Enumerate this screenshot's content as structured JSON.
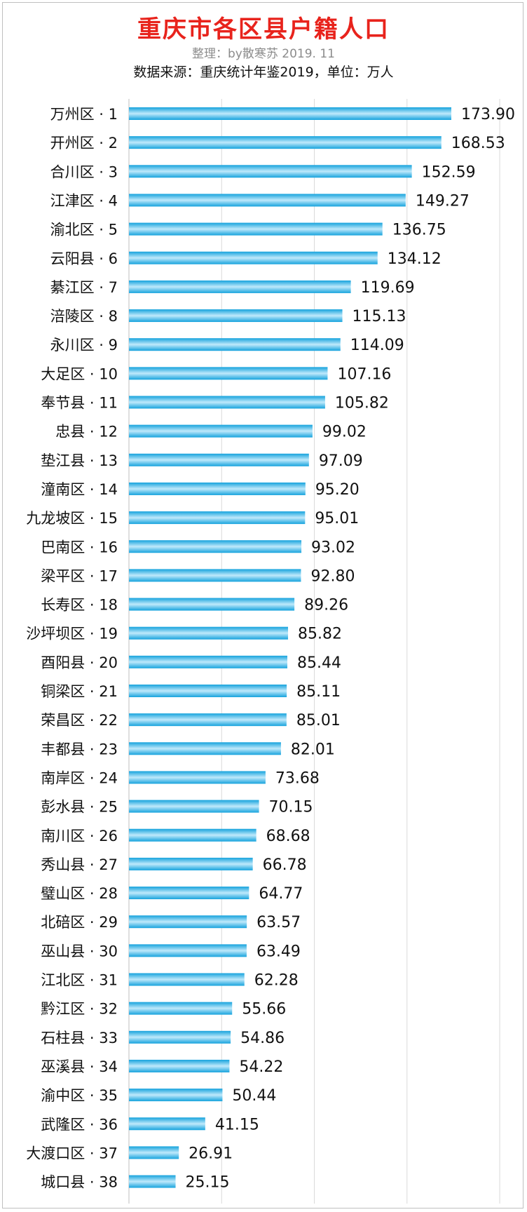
{
  "header": {
    "title": "重庆市各区县户籍人口",
    "subtitle": "整理：by散寒苏 2019. 11",
    "source": "数据来源：重庆统计年鉴2019，单位：万人"
  },
  "colors": {
    "title": "#e8231c",
    "bar_dark": "#16a3dd",
    "bar_light": "#bfe9fb",
    "grid": "#d9d9d9"
  },
  "chart_data": {
    "type": "bar",
    "orientation": "horizontal",
    "grid": true,
    "xlim": [
      0,
      200
    ],
    "categories": [
      "万州区 · 1",
      "开州区 · 2",
      "合川区 · 3",
      "江津区 · 4",
      "渝北区 · 5",
      "云阳县 · 6",
      "綦江区 · 7",
      "涪陵区 · 8",
      "永川区 · 9",
      "大足区 · 10",
      "奉节县 · 11",
      "忠县 · 12",
      "垫江县 · 13",
      "潼南区 · 14",
      "九龙坡区 · 15",
      "巴南区 · 16",
      "梁平区 · 17",
      "长寿区 · 18",
      "沙坪坝区 · 19",
      "酉阳县 · 20",
      "铜梁区 · 21",
      "荣昌区 · 22",
      "丰都县 · 23",
      "南岸区 · 24",
      "彭水县 · 25",
      "南川区 · 26",
      "秀山县 · 27",
      "璧山区 · 28",
      "北碚区 · 29",
      "巫山县 · 30",
      "江北区 · 31",
      "黔江区 · 32",
      "石柱县 · 33",
      "巫溪县 · 34",
      "渝中区 · 35",
      "武隆区 · 36",
      "大渡口区 · 37",
      "城口县 · 38"
    ],
    "values": [
      173.9,
      168.53,
      152.59,
      149.27,
      136.75,
      134.12,
      119.69,
      115.13,
      114.09,
      107.16,
      105.82,
      99.02,
      97.09,
      95.2,
      95.01,
      93.02,
      92.8,
      89.26,
      85.82,
      85.44,
      85.11,
      85.01,
      82.01,
      73.68,
      70.15,
      68.68,
      66.78,
      64.77,
      63.57,
      63.49,
      62.28,
      55.66,
      54.86,
      54.22,
      50.44,
      41.15,
      26.91,
      25.15
    ],
    "value_labels": [
      "173.90",
      "168.53",
      "152.59",
      "149.27",
      "136.75",
      "134.12",
      "119.69",
      "115.13",
      "114.09",
      "107.16",
      "105.82",
      "99.02",
      "97.09",
      "95.20",
      "95.01",
      "93.02",
      "92.80",
      "89.26",
      "85.82",
      "85.44",
      "85.11",
      "85.01",
      "82.01",
      "73.68",
      "70.15",
      "68.68",
      "66.78",
      "64.77",
      "63.57",
      "63.49",
      "62.28",
      "55.66",
      "54.86",
      "54.22",
      "50.44",
      "41.15",
      "26.91",
      "25.15"
    ]
  }
}
